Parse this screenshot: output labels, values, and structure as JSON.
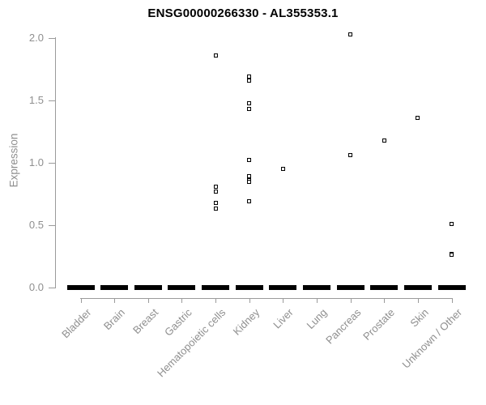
{
  "chart_data": {
    "type": "scatter",
    "title": "ENSG00000266330 - AL355353.1",
    "ylabel": "Expression",
    "xlabel": "",
    "ylim": [
      0.0,
      2.05
    ],
    "yticks": [
      "0.0",
      "0.5",
      "1.0",
      "1.5",
      "2.0"
    ],
    "grid": false,
    "legend": false,
    "marker_style": "open-square",
    "note": "strip plot; every category also has a dense cluster of samples at expression 0.0 rendered as a thick black dash on the baseline",
    "baseline_value": 0.0,
    "categories": [
      "Bladder",
      "Brain",
      "Breast",
      "Gastric",
      "Hematopoietic cells",
      "Kidney",
      "Liver",
      "Lung",
      "Pancreas",
      "Prostate",
      "Skin",
      "Unknown / Other"
    ],
    "series": [
      {
        "name": "Bladder",
        "zero_cluster": true,
        "values": []
      },
      {
        "name": "Brain",
        "zero_cluster": true,
        "values": []
      },
      {
        "name": "Breast",
        "zero_cluster": true,
        "values": []
      },
      {
        "name": "Gastric",
        "zero_cluster": true,
        "values": []
      },
      {
        "name": "Hematopoietic cells",
        "zero_cluster": true,
        "values": [
          1.86,
          0.81,
          0.77,
          0.68,
          0.63
        ]
      },
      {
        "name": "Kidney",
        "zero_cluster": true,
        "values": [
          1.69,
          1.66,
          1.48,
          1.43,
          1.02,
          0.89,
          0.86,
          0.85,
          0.69
        ]
      },
      {
        "name": "Liver",
        "zero_cluster": true,
        "values": [
          0.95
        ]
      },
      {
        "name": "Lung",
        "zero_cluster": true,
        "values": []
      },
      {
        "name": "Pancreas",
        "zero_cluster": true,
        "values": [
          2.03,
          1.06
        ]
      },
      {
        "name": "Prostate",
        "zero_cluster": true,
        "values": [
          1.18
        ]
      },
      {
        "name": "Skin",
        "zero_cluster": true,
        "values": [
          1.36
        ]
      },
      {
        "name": "Unknown / Other",
        "zero_cluster": true,
        "values": [
          0.51,
          0.27,
          0.26
        ]
      }
    ],
    "colors": {
      "marker": "#000000",
      "zero_dash": "#000000",
      "axis": "#9b9b9b",
      "tick_text": "#8f8f8f",
      "title_text": "#000000",
      "background": "#ffffff"
    }
  }
}
